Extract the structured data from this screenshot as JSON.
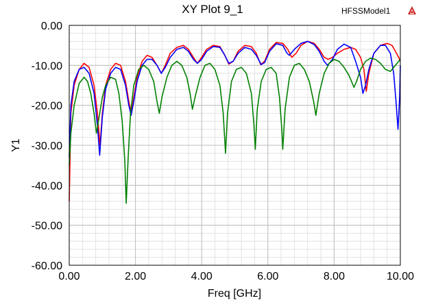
{
  "window": {
    "title": "XY Plot 9_1",
    "model_name": "HFSSModel1",
    "model_icon": "hfss-logo-icon"
  },
  "chart_data": {
    "type": "line",
    "title": "XY Plot 9_1",
    "xlabel": "Freq [GHz]",
    "ylabel": "Y1",
    "xlim": [
      0,
      10
    ],
    "ylim": [
      -60,
      0
    ],
    "x_ticks": [
      "0.00",
      "2.00",
      "4.00",
      "6.00",
      "8.00",
      "10.00"
    ],
    "y_ticks": [
      "0.00",
      "-10.00",
      "-20.00",
      "-30.00",
      "-40.00",
      "-50.00",
      "-60.00"
    ],
    "grid": true,
    "legend": "none",
    "series": [
      {
        "color": "#ff0000",
        "points": [
          [
            0.0,
            -44
          ],
          [
            0.05,
            -22
          ],
          [
            0.15,
            -15
          ],
          [
            0.3,
            -11
          ],
          [
            0.45,
            -9.5
          ],
          [
            0.6,
            -10.5
          ],
          [
            0.75,
            -15
          ],
          [
            0.85,
            -22
          ],
          [
            0.93,
            -30
          ],
          [
            1.0,
            -22
          ],
          [
            1.1,
            -15
          ],
          [
            1.25,
            -11
          ],
          [
            1.4,
            -9.5
          ],
          [
            1.55,
            -10
          ],
          [
            1.7,
            -14
          ],
          [
            1.8,
            -19
          ],
          [
            1.87,
            -22
          ],
          [
            1.95,
            -18
          ],
          [
            2.05,
            -13
          ],
          [
            2.2,
            -9
          ],
          [
            2.35,
            -7.5
          ],
          [
            2.5,
            -8
          ],
          [
            2.65,
            -10
          ],
          [
            2.78,
            -12
          ],
          [
            2.9,
            -10
          ],
          [
            3.05,
            -7
          ],
          [
            3.25,
            -5.5
          ],
          [
            3.45,
            -5
          ],
          [
            3.6,
            -6
          ],
          [
            3.75,
            -8
          ],
          [
            3.87,
            -9.5
          ],
          [
            4.0,
            -8
          ],
          [
            4.15,
            -6
          ],
          [
            4.35,
            -5
          ],
          [
            4.55,
            -5.3
          ],
          [
            4.7,
            -7.5
          ],
          [
            4.82,
            -9.7
          ],
          [
            4.95,
            -9
          ],
          [
            5.1,
            -6.5
          ],
          [
            5.3,
            -5
          ],
          [
            5.5,
            -5.3
          ],
          [
            5.65,
            -7
          ],
          [
            5.78,
            -9.8
          ],
          [
            5.9,
            -9
          ],
          [
            6.05,
            -6
          ],
          [
            6.25,
            -4.3
          ],
          [
            6.45,
            -4.5
          ],
          [
            6.6,
            -6
          ],
          [
            6.72,
            -8
          ],
          [
            6.85,
            -7
          ],
          [
            7.0,
            -5
          ],
          [
            7.2,
            -4
          ],
          [
            7.4,
            -4.5
          ],
          [
            7.55,
            -6
          ],
          [
            7.7,
            -8
          ],
          [
            7.82,
            -8.5
          ],
          [
            7.95,
            -8
          ],
          [
            8.1,
            -7
          ],
          [
            8.3,
            -6
          ],
          [
            8.5,
            -5.5
          ],
          [
            8.65,
            -6
          ],
          [
            8.8,
            -8
          ],
          [
            8.9,
            -11
          ],
          [
            8.97,
            -16.5
          ],
          [
            9.05,
            -12
          ],
          [
            9.2,
            -7
          ],
          [
            9.4,
            -5
          ],
          [
            9.6,
            -4.5
          ],
          [
            9.75,
            -5
          ],
          [
            9.85,
            -6.5
          ],
          [
            9.95,
            -8
          ],
          [
            10.0,
            -9
          ]
        ]
      },
      {
        "color": "#0000ff",
        "points": [
          [
            0.0,
            -33
          ],
          [
            0.05,
            -20
          ],
          [
            0.15,
            -14
          ],
          [
            0.3,
            -11
          ],
          [
            0.45,
            -10.5
          ],
          [
            0.6,
            -12
          ],
          [
            0.75,
            -17
          ],
          [
            0.85,
            -25
          ],
          [
            0.92,
            -32.5
          ],
          [
            1.0,
            -23
          ],
          [
            1.1,
            -16
          ],
          [
            1.25,
            -12
          ],
          [
            1.4,
            -10.5
          ],
          [
            1.55,
            -11
          ],
          [
            1.7,
            -15
          ],
          [
            1.8,
            -20
          ],
          [
            1.87,
            -22.5
          ],
          [
            1.95,
            -19
          ],
          [
            2.05,
            -14
          ],
          [
            2.2,
            -10
          ],
          [
            2.35,
            -8.5
          ],
          [
            2.5,
            -8.5
          ],
          [
            2.65,
            -10
          ],
          [
            2.78,
            -12
          ],
          [
            2.9,
            -10.5
          ],
          [
            3.05,
            -8
          ],
          [
            3.25,
            -6
          ],
          [
            3.45,
            -5.5
          ],
          [
            3.6,
            -6.5
          ],
          [
            3.75,
            -8.5
          ],
          [
            3.87,
            -9.5
          ],
          [
            4.0,
            -8.5
          ],
          [
            4.15,
            -6.5
          ],
          [
            4.35,
            -5.3
          ],
          [
            4.55,
            -5.5
          ],
          [
            4.7,
            -7.5
          ],
          [
            4.82,
            -9.5
          ],
          [
            4.95,
            -9
          ],
          [
            5.1,
            -7
          ],
          [
            5.3,
            -5.5
          ],
          [
            5.5,
            -6
          ],
          [
            5.65,
            -7.5
          ],
          [
            5.8,
            -9.8
          ],
          [
            5.9,
            -9.3
          ],
          [
            6.05,
            -6.5
          ],
          [
            6.25,
            -4.6
          ],
          [
            6.45,
            -5
          ],
          [
            6.58,
            -7
          ],
          [
            6.65,
            -7.5
          ],
          [
            6.8,
            -6
          ],
          [
            7.0,
            -4.5
          ],
          [
            7.2,
            -4
          ],
          [
            7.4,
            -4.8
          ],
          [
            7.55,
            -6.5
          ],
          [
            7.7,
            -9
          ],
          [
            7.8,
            -10
          ],
          [
            7.95,
            -8.5
          ],
          [
            8.1,
            -6
          ],
          [
            8.3,
            -4.7
          ],
          [
            8.5,
            -5.5
          ],
          [
            8.65,
            -9
          ],
          [
            8.8,
            -13
          ],
          [
            8.87,
            -17
          ],
          [
            8.95,
            -15
          ],
          [
            9.05,
            -11
          ],
          [
            9.2,
            -7
          ],
          [
            9.4,
            -5
          ],
          [
            9.55,
            -5
          ],
          [
            9.7,
            -7
          ],
          [
            9.8,
            -12
          ],
          [
            9.87,
            -19
          ],
          [
            9.93,
            -26
          ],
          [
            9.98,
            -18
          ],
          [
            10.0,
            -10
          ]
        ]
      },
      {
        "color": "#008000",
        "points": [
          [
            0.0,
            -35
          ],
          [
            0.05,
            -27
          ],
          [
            0.15,
            -20
          ],
          [
            0.3,
            -14.5
          ],
          [
            0.45,
            -13
          ],
          [
            0.55,
            -14
          ],
          [
            0.65,
            -17
          ],
          [
            0.75,
            -22
          ],
          [
            0.82,
            -27
          ],
          [
            0.9,
            -23
          ],
          [
            1.0,
            -18
          ],
          [
            1.1,
            -15
          ],
          [
            1.25,
            -13
          ],
          [
            1.4,
            -13.5
          ],
          [
            1.5,
            -17
          ],
          [
            1.6,
            -24
          ],
          [
            1.68,
            -34
          ],
          [
            1.72,
            -44.5
          ],
          [
            1.78,
            -33
          ],
          [
            1.85,
            -22
          ],
          [
            1.95,
            -15
          ],
          [
            2.1,
            -11
          ],
          [
            2.25,
            -10
          ],
          [
            2.4,
            -11
          ],
          [
            2.55,
            -14
          ],
          [
            2.65,
            -19
          ],
          [
            2.72,
            -22
          ],
          [
            2.8,
            -18
          ],
          [
            2.95,
            -13
          ],
          [
            3.1,
            -10
          ],
          [
            3.25,
            -9
          ],
          [
            3.4,
            -10
          ],
          [
            3.55,
            -13
          ],
          [
            3.65,
            -17
          ],
          [
            3.72,
            -21
          ],
          [
            3.8,
            -18
          ],
          [
            3.95,
            -13
          ],
          [
            4.1,
            -10
          ],
          [
            4.25,
            -9.5
          ],
          [
            4.4,
            -11
          ],
          [
            4.55,
            -15
          ],
          [
            4.65,
            -22
          ],
          [
            4.72,
            -32
          ],
          [
            4.78,
            -22
          ],
          [
            4.9,
            -14
          ],
          [
            5.05,
            -11
          ],
          [
            5.2,
            -10.5
          ],
          [
            5.35,
            -12
          ],
          [
            5.5,
            -17
          ],
          [
            5.58,
            -25
          ],
          [
            5.62,
            -31
          ],
          [
            5.68,
            -21
          ],
          [
            5.8,
            -14
          ],
          [
            5.95,
            -11
          ],
          [
            6.1,
            -10.5
          ],
          [
            6.25,
            -12
          ],
          [
            6.35,
            -18
          ],
          [
            6.42,
            -26
          ],
          [
            6.45,
            -31
          ],
          [
            6.52,
            -21
          ],
          [
            6.65,
            -13
          ],
          [
            6.8,
            -10
          ],
          [
            6.95,
            -9.5
          ],
          [
            7.1,
            -11
          ],
          [
            7.25,
            -14
          ],
          [
            7.38,
            -19
          ],
          [
            7.45,
            -22.5
          ],
          [
            7.55,
            -17
          ],
          [
            7.7,
            -12
          ],
          [
            7.85,
            -9.5
          ],
          [
            8.0,
            -8.5
          ],
          [
            8.15,
            -9
          ],
          [
            8.3,
            -10.5
          ],
          [
            8.45,
            -12.5
          ],
          [
            8.6,
            -15.5
          ],
          [
            8.68,
            -14
          ],
          [
            8.8,
            -11
          ],
          [
            8.95,
            -9
          ],
          [
            9.1,
            -8.2
          ],
          [
            9.25,
            -8.5
          ],
          [
            9.4,
            -9.5
          ],
          [
            9.55,
            -11
          ],
          [
            9.7,
            -11.5
          ],
          [
            9.85,
            -10
          ],
          [
            10.0,
            -8.5
          ]
        ]
      }
    ]
  }
}
